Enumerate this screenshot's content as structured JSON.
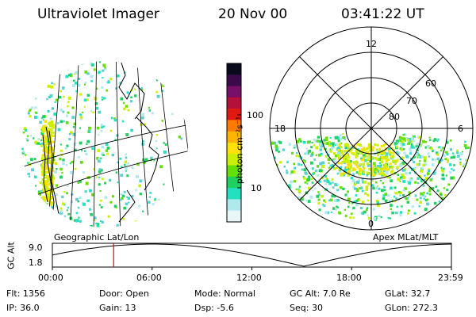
{
  "header": {
    "title": "Ultraviolet Imager",
    "date": "20 Nov 00",
    "time": "03:41:22 UT"
  },
  "colorbar": {
    "unit_label": "photon cm⁻²s⁻¹",
    "ticks": [
      "100",
      "10"
    ],
    "colors": [
      "#0a0a1e",
      "#3a0a4a",
      "#7a0f6a",
      "#b5103a",
      "#e01a10",
      "#ff7a00",
      "#ffb400",
      "#ffe200",
      "#c8f000",
      "#62e000",
      "#1fd060",
      "#22e0c0",
      "#b0e8f0",
      "#e8f6f8"
    ]
  },
  "polar": {
    "mlt_labels": {
      "top": "12",
      "left": "18",
      "right": "6",
      "bottom": "0"
    },
    "lat_labels": [
      "60",
      "70",
      "80"
    ]
  },
  "panel_labels": {
    "left": "Geographic Lat/Lon",
    "right": "Apex MLat/MLT"
  },
  "altitude_plot": {
    "ylabel": "GC Alt",
    "yticks": [
      "9.0",
      "1.8"
    ],
    "xticks": [
      "00:00",
      "06:00",
      "12:00",
      "18:00",
      "23:59"
    ],
    "marker_time": "03:41"
  },
  "info": {
    "row1": [
      {
        "label": "Flt:",
        "value": "1356"
      },
      {
        "label": "Door:",
        "value": "Open"
      },
      {
        "label": "Mode:",
        "value": "Normal"
      },
      {
        "label": "GC Alt:",
        "value": "7.0 Re"
      },
      {
        "label": "GLat:",
        "value": "32.7"
      }
    ],
    "row2": [
      {
        "label": "IP:",
        "value": "36.0"
      },
      {
        "label": "Gain:",
        "value": "13"
      },
      {
        "label": "Dsp:",
        "value": "-5.6"
      },
      {
        "label": "Seq:",
        "value": "30"
      },
      {
        "label": "GLon:",
        "value": "272.3"
      }
    ]
  }
}
